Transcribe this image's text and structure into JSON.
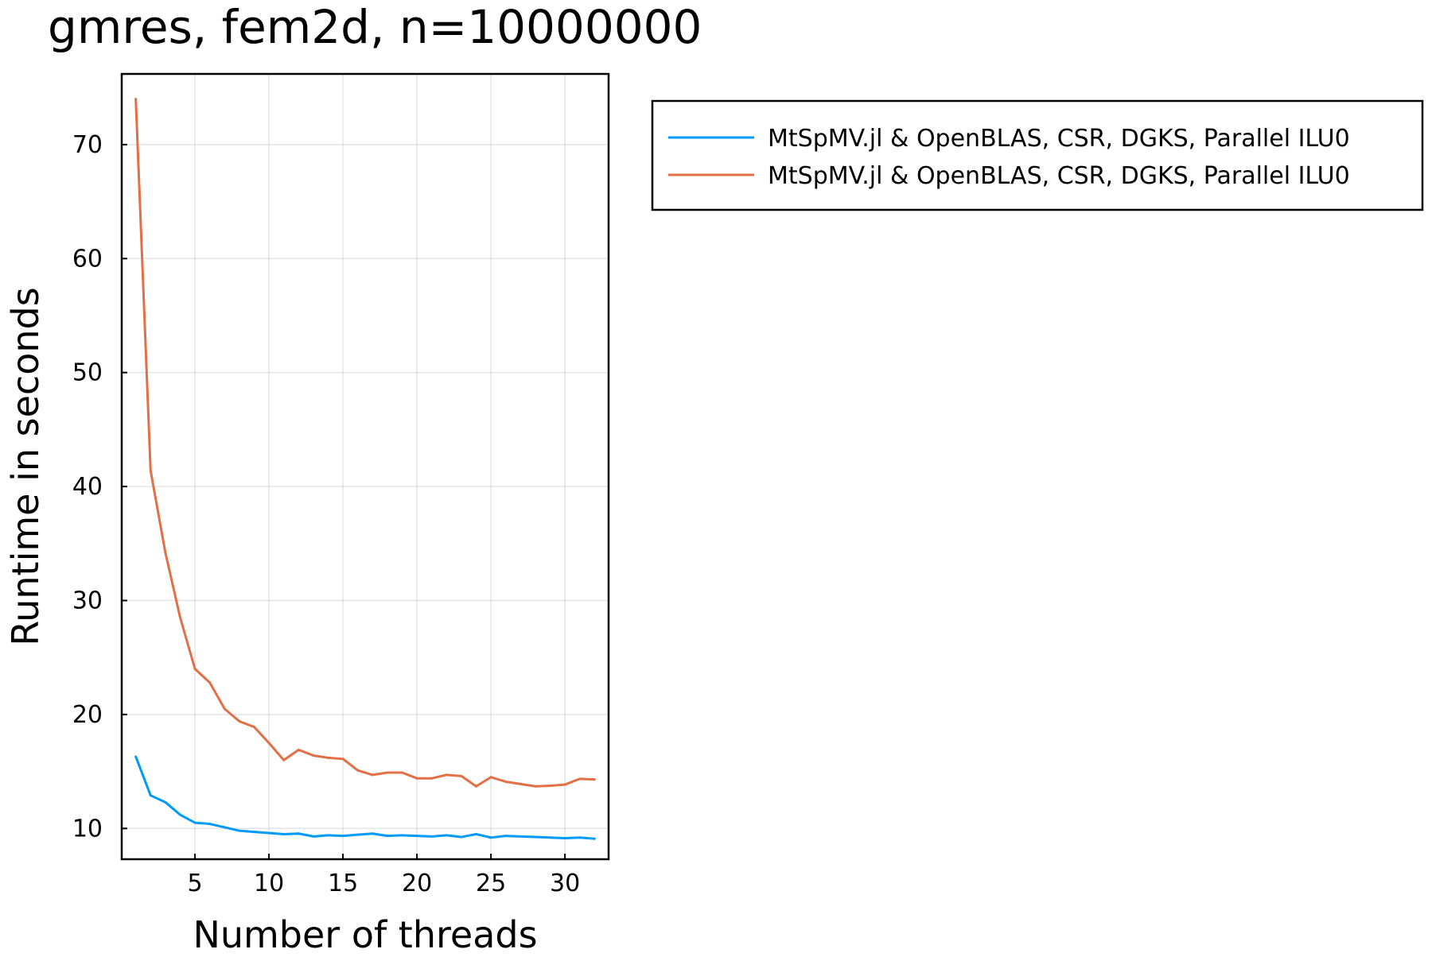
{
  "chart_data": {
    "type": "line",
    "title": "gmres, fem2d, n=10000000",
    "xlabel": "Number of threads",
    "ylabel": "Runtime in seconds",
    "xlim": [
      0.05,
      32.95
    ],
    "ylim": [
      7.3,
      76.2
    ],
    "xticks": [
      5,
      10,
      15,
      20,
      25,
      30
    ],
    "yticks": [
      10,
      20,
      30,
      40,
      50,
      60,
      70
    ],
    "grid": true,
    "legend_position": "outside-top-right",
    "x": [
      1,
      2,
      3,
      4,
      5,
      6,
      7,
      8,
      9,
      10,
      11,
      12,
      13,
      14,
      15,
      16,
      17,
      18,
      19,
      20,
      21,
      22,
      23,
      24,
      25,
      26,
      27,
      28,
      29,
      30,
      31,
      32
    ],
    "series": [
      {
        "name": "MtSpMV.jl & OpenBLAS, CSR, DGKS, Parallel ILU0",
        "color": "#009af9",
        "values": [
          16.3,
          12.9,
          12.3,
          11.2,
          10.5,
          10.4,
          10.1,
          9.8,
          9.7,
          9.6,
          9.5,
          9.55,
          9.3,
          9.4,
          9.35,
          9.45,
          9.55,
          9.35,
          9.4,
          9.35,
          9.3,
          9.4,
          9.25,
          9.5,
          9.2,
          9.35,
          9.3,
          9.25,
          9.2,
          9.15,
          9.2,
          9.1
        ]
      },
      {
        "name": "MtSpMV.jl & OpenBLAS, CSR, DGKS, Parallel ILU0",
        "color": "#e26f46",
        "values": [
          74.0,
          41.4,
          34.2,
          28.5,
          24.0,
          22.8,
          20.5,
          19.4,
          18.9,
          17.5,
          16.0,
          16.9,
          16.4,
          16.2,
          16.1,
          15.1,
          14.7,
          14.9,
          14.9,
          14.4,
          14.4,
          14.7,
          14.6,
          13.7,
          14.5,
          14.1,
          13.9,
          13.7,
          13.75,
          13.85,
          14.35,
          14.3
        ]
      }
    ]
  }
}
